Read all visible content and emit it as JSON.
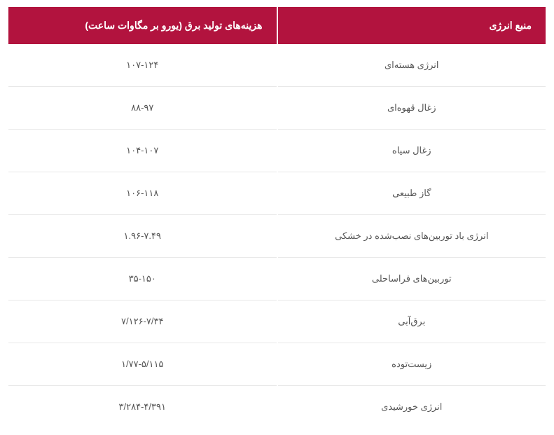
{
  "table": {
    "header_bg": "#b2133e",
    "header_text_color": "#ffffff",
    "row_border_color": "#e8e8e8",
    "cell_text_color": "#555555",
    "columns": [
      {
        "label": "منبع انرژی"
      },
      {
        "label": "هزینه‌های تولید برق (یورو بر مگاوات ساعت)"
      }
    ],
    "rows": [
      {
        "source": "انرژی هسته‌ای",
        "cost": "۱۰۷-۱۲۴"
      },
      {
        "source": "زغال قهوه‌ای",
        "cost": "۸۸-۹۷"
      },
      {
        "source": "زغال سیاه",
        "cost": "۱۰۴-۱۰۷"
      },
      {
        "source": "گاز طبیعی",
        "cost": "۱۰۶-۱۱۸"
      },
      {
        "source": "انرژی باد توربین‌های نصب‌شده در خشکی",
        "cost": "۱.۹۶-۷.۴۹"
      },
      {
        "source": "توربین‌های فراساحلی",
        "cost": "۳۵-۱۵۰"
      },
      {
        "source": "برق‌آبی",
        "cost": "۷/۱۲۶-۷/۳۴"
      },
      {
        "source": "زیست‌توده",
        "cost": "۱/۷۷-۵/۱۱۵"
      },
      {
        "source": "انرژی خورشیدی",
        "cost": "۳/۲۸۴-۴/۳۹۱"
      }
    ]
  }
}
